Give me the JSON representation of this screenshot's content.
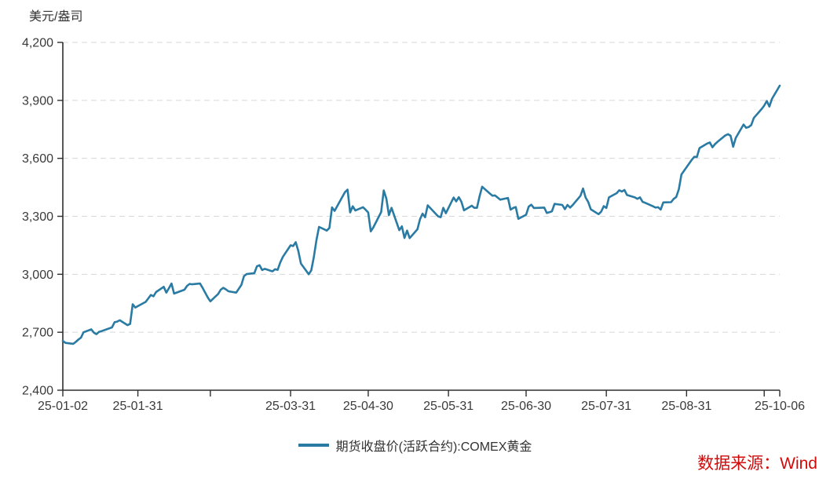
{
  "page": {
    "unit_label": "美元/盎司",
    "source_label": "数据来源：Wind"
  },
  "legend": {
    "label": "期货收盘价(活跃合约):COMEX黄金"
  },
  "colors": {
    "line": "#2a7ba4",
    "grid": "#d8d8d8",
    "axis": "#2e2e2e",
    "tick_text": "#3a3a3a",
    "source": "#d10a0a",
    "background": "#ffffff"
  },
  "chart_data": {
    "type": "line",
    "title": "",
    "ylabel": "美元/盎司",
    "xlabel": "",
    "legend_entries": [
      "期货收盘价(活跃合约):COMEX黄金"
    ],
    "legend_position": "bottom-center",
    "grid": "horizontal-dashed",
    "ylim": [
      2400,
      4200
    ],
    "yticks": [
      2400,
      2700,
      3000,
      3300,
      3600,
      3900,
      4200
    ],
    "x_range": [
      "2025-01-02",
      "2025-10-06"
    ],
    "xticks": [
      {
        "date": "2025-01-02",
        "label": "25-01-02"
      },
      {
        "date": "2025-01-31",
        "label": "25-01-31"
      },
      {
        "date": "2025-02-28",
        "label": ""
      },
      {
        "date": "2025-03-31",
        "label": "25-03-31"
      },
      {
        "date": "2025-04-30",
        "label": "25-04-30"
      },
      {
        "date": "2025-05-31",
        "label": "25-05-31"
      },
      {
        "date": "2025-06-30",
        "label": "25-06-30"
      },
      {
        "date": "2025-07-31",
        "label": "25-07-31"
      },
      {
        "date": "2025-08-31",
        "label": "25-08-31"
      },
      {
        "date": "2025-09-30",
        "label": ""
      },
      {
        "date": "2025-10-06",
        "label": "25-10-06"
      }
    ],
    "series": [
      {
        "name": "期货收盘价(活跃合约):COMEX黄金",
        "x": [
          "2025-01-02",
          "2025-01-03",
          "2025-01-06",
          "2025-01-07",
          "2025-01-08",
          "2025-01-09",
          "2025-01-10",
          "2025-01-13",
          "2025-01-14",
          "2025-01-15",
          "2025-01-16",
          "2025-01-17",
          "2025-01-21",
          "2025-01-22",
          "2025-01-23",
          "2025-01-24",
          "2025-01-27",
          "2025-01-28",
          "2025-01-29",
          "2025-01-30",
          "2025-01-31",
          "2025-02-03",
          "2025-02-04",
          "2025-02-05",
          "2025-02-06",
          "2025-02-07",
          "2025-02-10",
          "2025-02-11",
          "2025-02-12",
          "2025-02-13",
          "2025-02-14",
          "2025-02-18",
          "2025-02-19",
          "2025-02-20",
          "2025-02-21",
          "2025-02-24",
          "2025-02-25",
          "2025-02-26",
          "2025-02-27",
          "2025-02-28",
          "2025-03-03",
          "2025-03-04",
          "2025-03-05",
          "2025-03-06",
          "2025-03-07",
          "2025-03-10",
          "2025-03-11",
          "2025-03-12",
          "2025-03-13",
          "2025-03-14",
          "2025-03-17",
          "2025-03-18",
          "2025-03-19",
          "2025-03-20",
          "2025-03-21",
          "2025-03-24",
          "2025-03-25",
          "2025-03-26",
          "2025-03-27",
          "2025-03-28",
          "2025-03-31",
          "2025-04-01",
          "2025-04-02",
          "2025-04-03",
          "2025-04-04",
          "2025-04-07",
          "2025-04-08",
          "2025-04-09",
          "2025-04-10",
          "2025-04-11",
          "2025-04-14",
          "2025-04-15",
          "2025-04-16",
          "2025-04-17",
          "2025-04-21",
          "2025-04-22",
          "2025-04-23",
          "2025-04-24",
          "2025-04-25",
          "2025-04-28",
          "2025-04-29",
          "2025-04-30",
          "2025-05-01",
          "2025-05-02",
          "2025-05-05",
          "2025-05-06",
          "2025-05-07",
          "2025-05-08",
          "2025-05-09",
          "2025-05-12",
          "2025-05-13",
          "2025-05-14",
          "2025-05-15",
          "2025-05-16",
          "2025-05-19",
          "2025-05-20",
          "2025-05-21",
          "2025-05-22",
          "2025-05-23",
          "2025-05-27",
          "2025-05-28",
          "2025-05-29",
          "2025-05-30",
          "2025-06-02",
          "2025-06-03",
          "2025-06-04",
          "2025-06-05",
          "2025-06-06",
          "2025-06-09",
          "2025-06-10",
          "2025-06-11",
          "2025-06-12",
          "2025-06-13",
          "2025-06-16",
          "2025-06-17",
          "2025-06-18",
          "2025-06-20",
          "2025-06-23",
          "2025-06-24",
          "2025-06-25",
          "2025-06-26",
          "2025-06-27",
          "2025-06-30",
          "2025-07-01",
          "2025-07-02",
          "2025-07-03",
          "2025-07-07",
          "2025-07-08",
          "2025-07-09",
          "2025-07-10",
          "2025-07-11",
          "2025-07-14",
          "2025-07-15",
          "2025-07-16",
          "2025-07-17",
          "2025-07-18",
          "2025-07-21",
          "2025-07-22",
          "2025-07-23",
          "2025-07-24",
          "2025-07-25",
          "2025-07-28",
          "2025-07-29",
          "2025-07-30",
          "2025-07-31",
          "2025-08-01",
          "2025-08-04",
          "2025-08-05",
          "2025-08-06",
          "2025-08-07",
          "2025-08-08",
          "2025-08-11",
          "2025-08-12",
          "2025-08-13",
          "2025-08-14",
          "2025-08-15",
          "2025-08-18",
          "2025-08-19",
          "2025-08-20",
          "2025-08-21",
          "2025-08-22",
          "2025-08-25",
          "2025-08-26",
          "2025-08-27",
          "2025-08-28",
          "2025-08-29",
          "2025-09-02",
          "2025-09-03",
          "2025-09-04",
          "2025-09-05",
          "2025-09-08",
          "2025-09-09",
          "2025-09-10",
          "2025-09-11",
          "2025-09-12",
          "2025-09-15",
          "2025-09-16",
          "2025-09-17",
          "2025-09-18",
          "2025-09-19",
          "2025-09-22",
          "2025-09-23",
          "2025-09-24",
          "2025-09-25",
          "2025-09-26",
          "2025-09-29",
          "2025-09-30",
          "2025-10-01",
          "2025-10-02",
          "2025-10-03",
          "2025-10-06"
        ],
        "values": [
          2655,
          2645,
          2640,
          2650,
          2662,
          2672,
          2700,
          2715,
          2698,
          2690,
          2702,
          2706,
          2725,
          2752,
          2755,
          2762,
          2737,
          2743,
          2845,
          2828,
          2835,
          2857,
          2875,
          2893,
          2886,
          2908,
          2935,
          2905,
          2928,
          2952,
          2900,
          2920,
          2940,
          2950,
          2948,
          2952,
          2930,
          2905,
          2880,
          2860,
          2898,
          2920,
          2930,
          2922,
          2912,
          2905,
          2925,
          2945,
          2990,
          3001,
          3006,
          3041,
          3047,
          3022,
          3028,
          3015,
          3026,
          3023,
          3061,
          3090,
          3150,
          3146,
          3166,
          3121,
          3056,
          3000,
          3020,
          3090,
          3177,
          3245,
          3226,
          3240,
          3346,
          3328,
          3425,
          3438,
          3320,
          3352,
          3330,
          3347,
          3334,
          3320,
          3222,
          3243,
          3322,
          3434,
          3392,
          3306,
          3344,
          3228,
          3248,
          3188,
          3226,
          3187,
          3233,
          3285,
          3314,
          3295,
          3357,
          3300,
          3295,
          3344,
          3316,
          3397,
          3377,
          3399,
          3375,
          3331,
          3355,
          3344,
          3344,
          3403,
          3453,
          3418,
          3407,
          3408,
          3386,
          3395,
          3334,
          3343,
          3348,
          3287,
          3308,
          3350,
          3360,
          3343,
          3345,
          3317,
          3321,
          3326,
          3364,
          3359,
          3337,
          3359,
          3345,
          3358,
          3406,
          3444,
          3397,
          3374,
          3336,
          3311,
          3324,
          3353,
          3343,
          3398,
          3420,
          3435,
          3428,
          3436,
          3410,
          3398,
          3390,
          3398,
          3375,
          3370,
          3352,
          3345,
          3347,
          3335,
          3372,
          3373,
          3390,
          3400,
          3440,
          3516,
          3592,
          3608,
          3607,
          3653,
          3677,
          3682,
          3657,
          3674,
          3686,
          3719,
          3725,
          3717,
          3660,
          3706,
          3775,
          3758,
          3762,
          3772,
          3809,
          3855,
          3873,
          3897,
          3868,
          3908,
          3976
        ]
      }
    ]
  }
}
